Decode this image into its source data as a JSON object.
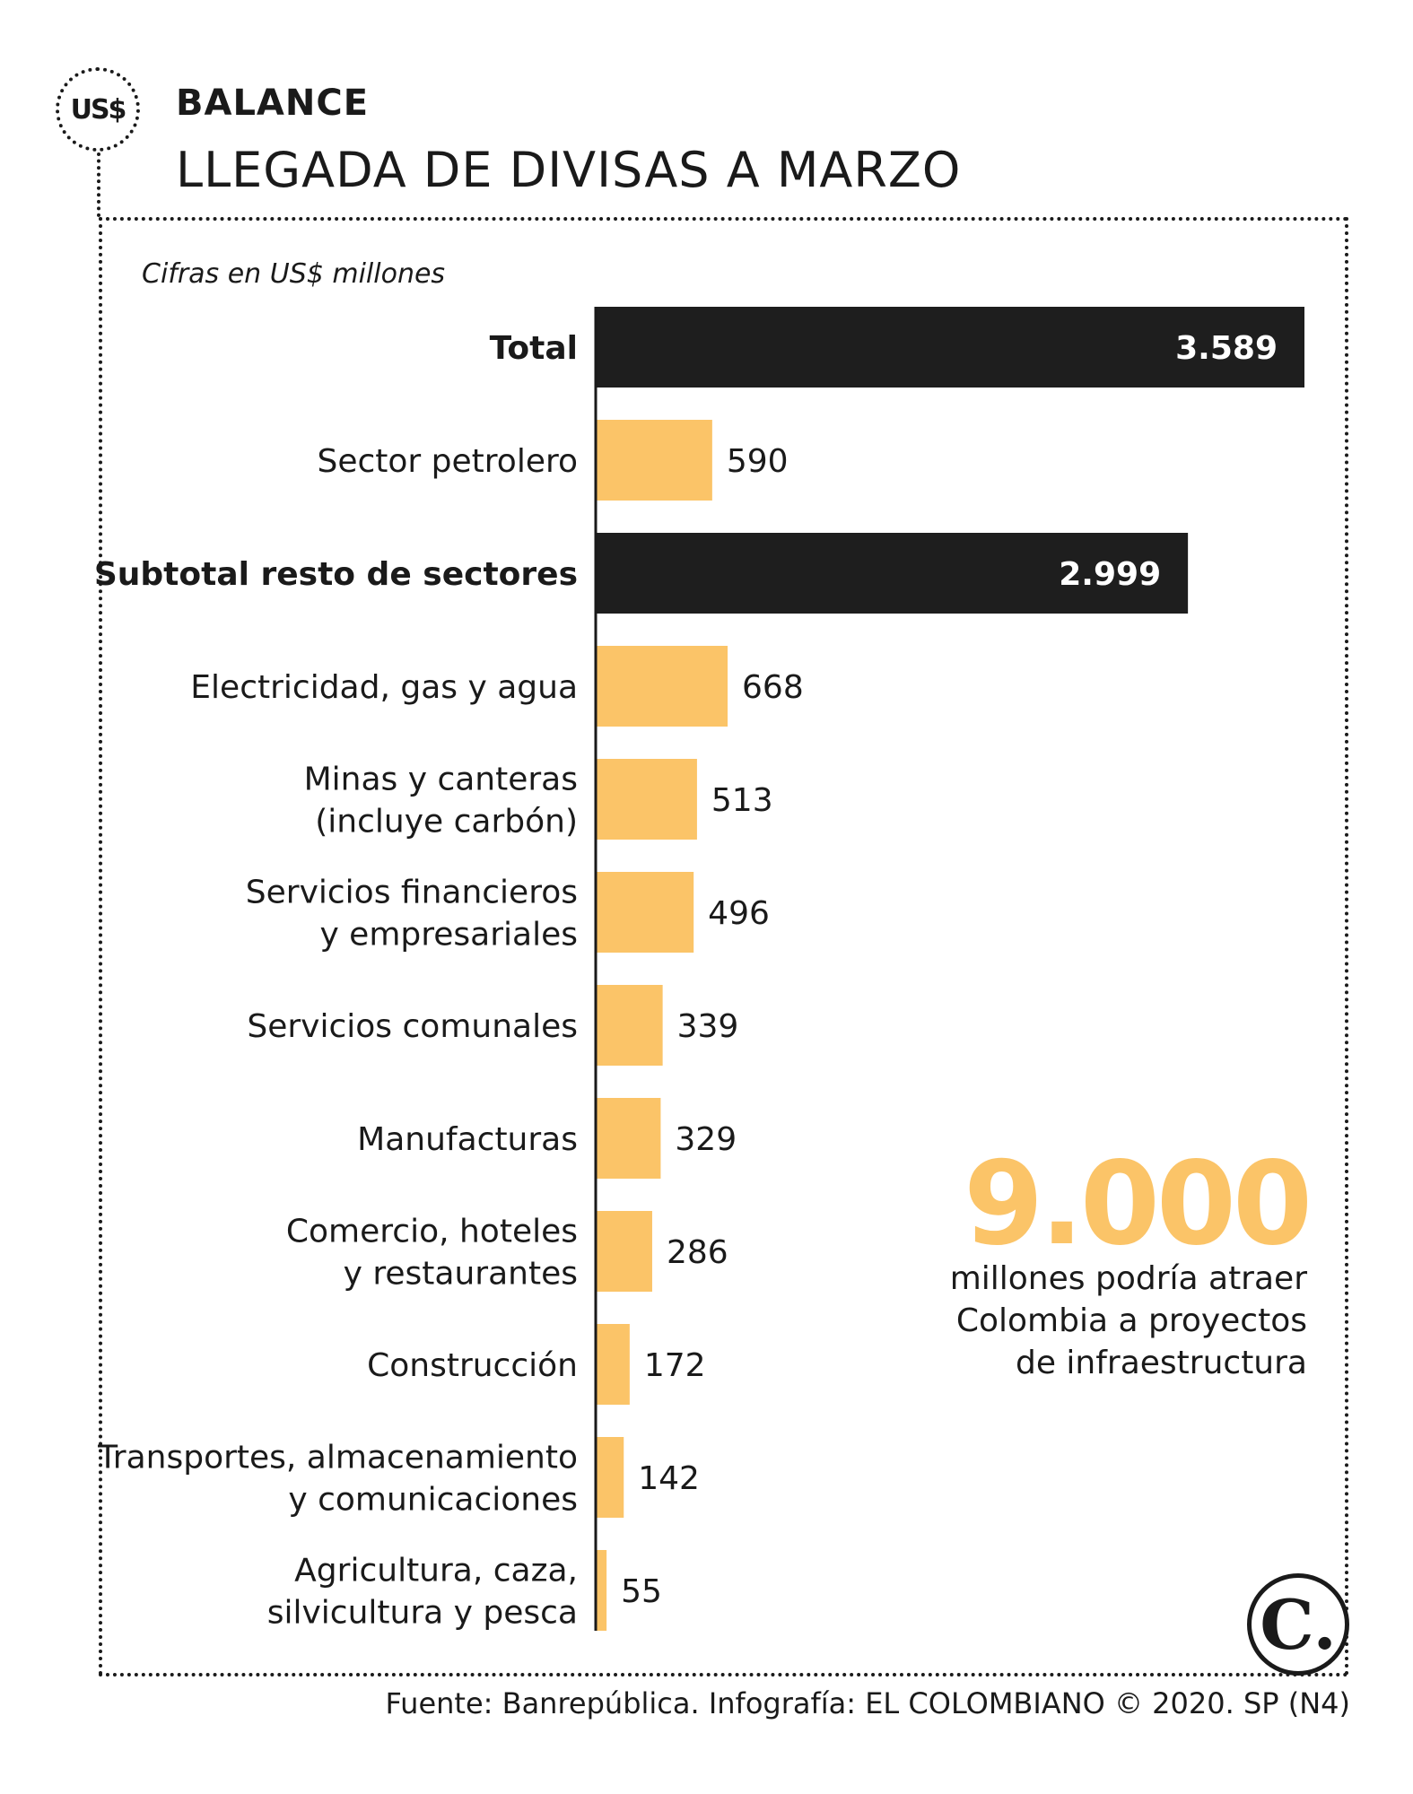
{
  "header": {
    "badge": "US$",
    "kicker": "BALANCE",
    "title": "LLEGADA DE DIVISAS A MARZO"
  },
  "units_note": "Cifras en US$ millones",
  "chart_data": {
    "type": "bar",
    "orientation": "horizontal",
    "title": "LLEGADA DE DIVISAS A MARZO",
    "categories": [
      [
        "Total"
      ],
      [
        "Sector petrolero"
      ],
      [
        "Subtotal resto de sectores"
      ],
      [
        "Electricidad, gas y agua"
      ],
      [
        "Minas y canteras",
        "(incluye carbón)"
      ],
      [
        "Servicios financieros",
        "y empresariales"
      ],
      [
        "Servicios comunales"
      ],
      [
        "Manufacturas"
      ],
      [
        "Comercio, hoteles",
        "y restaurantes"
      ],
      [
        "Construcción"
      ],
      [
        "Transportes, almacenamiento",
        "y comunicaciones"
      ],
      [
        "Agricultura, caza,",
        "silvicultura y pesca"
      ]
    ],
    "values": [
      3589,
      590,
      2999,
      668,
      513,
      496,
      339,
      329,
      286,
      172,
      142,
      55
    ],
    "value_labels": [
      "3.589",
      "590",
      "2.999",
      "668",
      "513",
      "496",
      "339",
      "329",
      "286",
      "172",
      "142",
      "55"
    ],
    "highlighted": [
      true,
      false,
      true,
      false,
      false,
      false,
      false,
      false,
      false,
      false,
      false,
      false
    ],
    "colors": {
      "highlight": "#1e1e1e",
      "normal": "#fbc468",
      "axis": "#1a1a1a"
    },
    "xlim": [
      0,
      3589
    ],
    "grid": false,
    "legend": "none"
  },
  "highlight": {
    "number": "9.000",
    "text": "millones podría atraer\nColombia a proyectos\nde infraestructura"
  },
  "brand": {
    "logo": "C."
  },
  "source": "Fuente: Banrepública. Infografía: EL COLOMBIANO © 2020. SP (N4)"
}
